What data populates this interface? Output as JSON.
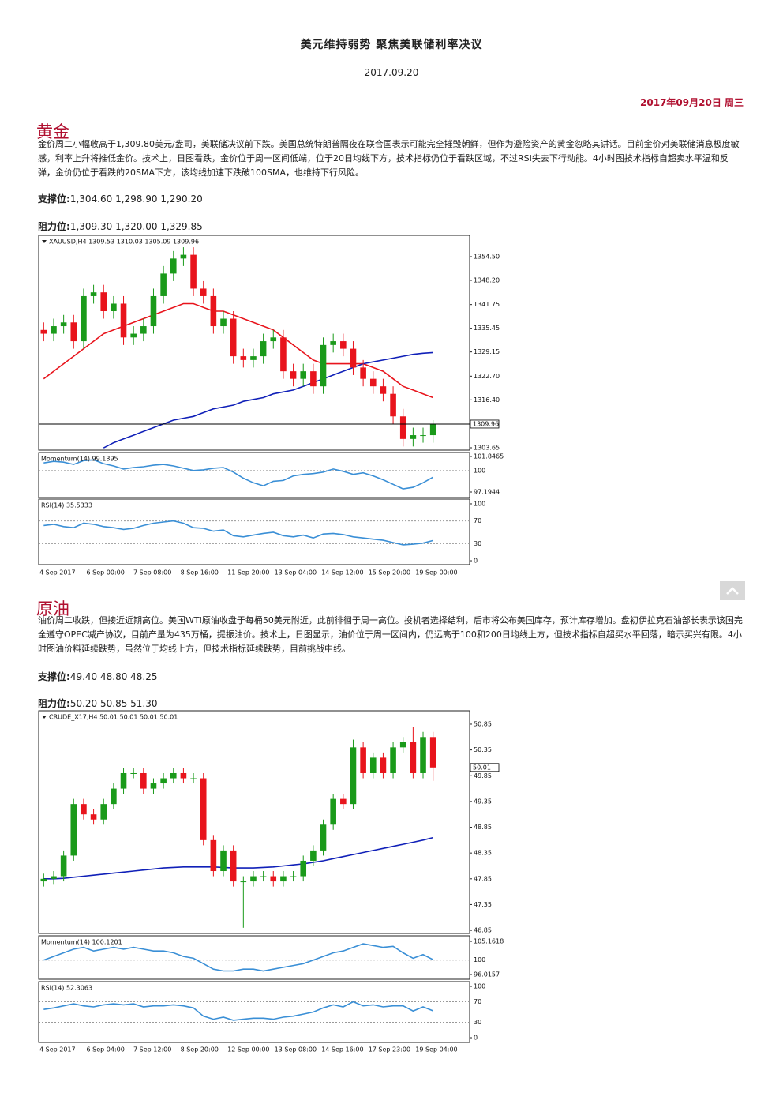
{
  "document": {
    "header": {
      "title": "美元维持弱势 聚焦美联储利率决议",
      "date": "2017.09.20",
      "date_right": "2017年09月20日 周三"
    },
    "sections": [
      {
        "heading": "黄金",
        "body": "金价周二小幅收高于1,309.80美元/盎司，美联储决议前下跌。美国总统特朗普隔夜在联合国表示可能完全摧毁朝鲜，但作为避险资产的黄金忽略其讲话。目前金价对美联储消息极度敏感，利率上升将推低金价。技术上，日图看跌，金价位于周一区间低端，位于20日均线下方，技术指标仍位于看跌区域，不过RSI失去下行动能。4小时图技术指标自超卖水平温和反弹，金价仍位于看跌的20SMA下方，该均线加速下跌破100SMA，也维持下行风险。",
        "support_label": "支撑位:",
        "support": "1,304.60 1,298.90 1,290.20",
        "resistance_label": "阻力位:",
        "resistance": "1,309.30 1,320.00 1,329.85"
      },
      {
        "heading": "原油",
        "body": "油价周二收跌，但接近近期高位。美国WTI原油收盘于每桶50美元附近，此前徘徊于周一高位。投机者选择结利，后市将公布美国库存，预计库存增加。盘初伊拉克石油部长表示该国完全遵守OPEC减产协议，目前产量为435万桶，提振油价。技术上，日图显示，油价位于周一区间内，仍远高于100和200日均线上方，但技术指标自超买水平回落，暗示买兴有限。4小时图油价料延续跌势，虽然位于均线上方，但技术指标延续跌势，目前挑战中线。",
        "support_label": "支撑位:",
        "support": "49.40 48.80 48.25",
        "resistance_label": "阻力位:",
        "resistance": "50.20 50.85 51.30"
      }
    ]
  },
  "chart_data": [
    {
      "type": "candlestick",
      "header": "XAUUSD,H4  1309.53 1310.03 1305.09 1309.96",
      "up_color": "#1a9a1a",
      "down_color": "#e8141c",
      "ylim": [
        1303.02,
        1360.17
      ],
      "yticks": [
        {
          "value": 1354.5,
          "label": "1354.50"
        },
        {
          "value": 1348.2,
          "label": "1348.20"
        },
        {
          "value": 1341.75,
          "label": "1341.75"
        },
        {
          "value": 1335.45,
          "label": "1335.45"
        },
        {
          "value": 1329.15,
          "label": "1329.15"
        },
        {
          "value": 1322.7,
          "label": "1322.70"
        },
        {
          "value": 1316.4,
          "label": "1316.40"
        },
        {
          "value": 1303.65,
          "label": "1303.65"
        }
      ],
      "last_price": 1309.96,
      "last_price_line": true,
      "x_labels": [
        "4 Sep 2017",
        "6 Sep 00:00",
        "7 Sep 08:00",
        "8 Sep 16:00",
        "11 Sep 20:00",
        "13 Sep 04:00",
        "14 Sep 12:00",
        "15 Sep 20:00",
        "19 Sep 00:00"
      ],
      "open": [
        1335,
        1334,
        1336,
        1337,
        1332,
        1344,
        1345,
        1340,
        1342,
        1333,
        1334,
        1336,
        1344,
        1350,
        1354,
        1355,
        1346,
        1344,
        1336,
        1338,
        1328,
        1327,
        1328,
        1332,
        1333,
        1324,
        1322,
        1324,
        1320,
        1331,
        1332,
        1330,
        1325,
        1322,
        1320,
        1318,
        1312,
        1306,
        1307,
        1307
      ],
      "high": [
        1337,
        1338,
        1339,
        1339,
        1346,
        1347,
        1347,
        1344,
        1344,
        1336,
        1338,
        1346,
        1352,
        1356,
        1357,
        1357,
        1348,
        1346,
        1340,
        1340,
        1330,
        1330,
        1334,
        1335,
        1335,
        1326,
        1326,
        1326,
        1333,
        1334,
        1334,
        1332,
        1327,
        1324,
        1322,
        1320,
        1314,
        1309,
        1309,
        1311
      ],
      "low": [
        1332,
        1332,
        1334,
        1330,
        1330,
        1342,
        1338,
        1338,
        1331,
        1331,
        1332,
        1334,
        1342,
        1348,
        1352,
        1344,
        1342,
        1334,
        1334,
        1326,
        1325,
        1325,
        1326,
        1330,
        1322,
        1320,
        1320,
        1318,
        1318,
        1329,
        1328,
        1323,
        1320,
        1318,
        1316,
        1310,
        1304,
        1304,
        1305,
        1305
      ],
      "close": [
        1334,
        1336,
        1337,
        1332,
        1344,
        1345,
        1340,
        1342,
        1333,
        1334,
        1336,
        1344,
        1350,
        1354,
        1355,
        1346,
        1344,
        1336,
        1338,
        1328,
        1327,
        1328,
        1332,
        1333,
        1324,
        1322,
        1324,
        1320,
        1331,
        1332,
        1330,
        1325,
        1322,
        1320,
        1318,
        1312,
        1306,
        1307,
        1307,
        1309.96
      ],
      "lines": [
        {
          "color": "#e8141c",
          "values": [
            1322,
            1324,
            1326,
            1328,
            1330,
            1332,
            1334,
            1335,
            1336,
            1337,
            1338,
            1339,
            1340,
            1341,
            1342,
            1342,
            1341,
            1340,
            1340,
            1339,
            1338,
            1337,
            1336,
            1335,
            1333,
            1331,
            1329,
            1327,
            1326,
            1326,
            1326,
            1326,
            1326,
            1325,
            1324,
            1322,
            1320,
            1319,
            1318,
            1317
          ]
        },
        {
          "color": "#1020b8",
          "values": [
            null,
            null,
            null,
            null,
            null,
            null,
            1303.6,
            1305,
            1306,
            1307,
            1308,
            1309,
            1310,
            1311,
            1311.5,
            1312,
            1313,
            1314,
            1314.5,
            1315,
            1316,
            1316.5,
            1317,
            1318,
            1318.5,
            1319,
            1320,
            1321,
            1322,
            1323,
            1324,
            1325,
            1326,
            1326.5,
            1327,
            1327.5,
            1328,
            1328.5,
            1328.8,
            1329
          ]
        }
      ],
      "momentum": {
        "label": "Momentum(14) 99.1395",
        "color": "#3a8fd6",
        "ylim": [
          96.47,
          102.36
        ],
        "yticks": [
          101.8465,
          100,
          97.1944
        ],
        "values": [
          101.0,
          101.2,
          101.1,
          100.8,
          101.3,
          101.4,
          100.9,
          100.6,
          100.2,
          100.4,
          100.5,
          100.7,
          100.8,
          100.6,
          100.3,
          100.0,
          100.1,
          100.3,
          100.4,
          99.8,
          99.0,
          98.4,
          98.0,
          98.6,
          98.7,
          99.3,
          99.5,
          99.6,
          99.8,
          100.2,
          99.9,
          99.5,
          99.7,
          99.3,
          98.8,
          98.2,
          97.6,
          97.8,
          98.4,
          99.1395
        ]
      },
      "rsi": {
        "label": "RSI(14) 35.5333",
        "color": "#3a8fd6",
        "ylim": [
          -6.9,
          108.3
        ],
        "yticks": [
          100,
          70,
          30,
          0
        ],
        "values": [
          62,
          64,
          60,
          58,
          66,
          64,
          60,
          58,
          55,
          57,
          62,
          66,
          68,
          70,
          66,
          58,
          57,
          52,
          54,
          44,
          42,
          45,
          48,
          50,
          44,
          42,
          45,
          40,
          47,
          48,
          46,
          42,
          40,
          38,
          36,
          32,
          28,
          29,
          31,
          35.5333
        ]
      }
    },
    {
      "type": "candlestick",
      "header": "CRUDE_X17,H4  50.01 50.01 50.01 50.01",
      "up_color": "#1a9a1a",
      "down_color": "#e8141c",
      "ylim": [
        46.79,
        51.11
      ],
      "yticks": [
        {
          "value": 50.85,
          "label": "50.85"
        },
        {
          "value": 50.35,
          "label": "50.35"
        },
        {
          "value": 49.85,
          "label": "49.85"
        },
        {
          "value": 49.35,
          "label": "49.35"
        },
        {
          "value": 48.85,
          "label": "48.85"
        },
        {
          "value": 48.35,
          "label": "48.35"
        },
        {
          "value": 47.85,
          "label": "47.85"
        },
        {
          "value": 47.35,
          "label": "47.35"
        },
        {
          "value": 46.85,
          "label": "46.85"
        }
      ],
      "last_price": 50.01,
      "last_price_line": false,
      "x_labels": [
        "4 Sep 2017",
        "6 Sep 04:00",
        "7 Sep 12:00",
        "8 Sep 20:00",
        "12 Sep 00:00",
        "13 Sep 08:00",
        "14 Sep 16:00",
        "17 Sep 23:00",
        "19 Sep 04:00"
      ],
      "open": [
        47.8,
        47.85,
        47.9,
        48.3,
        49.3,
        49.1,
        49.0,
        49.3,
        49.6,
        49.9,
        49.9,
        49.6,
        49.7,
        49.8,
        49.9,
        49.8,
        49.8,
        48.6,
        48.0,
        48.4,
        47.8,
        47.8,
        47.9,
        47.9,
        47.8,
        47.9,
        47.9,
        48.2,
        48.4,
        48.9,
        49.4,
        49.3,
        50.4,
        49.9,
        50.2,
        49.9,
        50.4,
        50.5,
        49.9,
        50.6
      ],
      "high": [
        47.95,
        48.0,
        48.4,
        49.4,
        49.4,
        49.2,
        49.4,
        49.7,
        50.0,
        50.0,
        50.0,
        49.8,
        49.9,
        50.0,
        50.0,
        49.9,
        49.9,
        48.7,
        48.5,
        48.5,
        47.9,
        48.0,
        48.0,
        48.0,
        48.0,
        48.0,
        48.3,
        48.5,
        49.0,
        49.5,
        49.5,
        50.55,
        50.5,
        50.3,
        50.3,
        50.5,
        50.6,
        50.8,
        50.7,
        50.7
      ],
      "low": [
        47.7,
        47.75,
        47.8,
        48.2,
        49.0,
        48.9,
        48.9,
        49.2,
        49.5,
        49.8,
        49.5,
        49.5,
        49.6,
        49.7,
        49.7,
        49.7,
        48.5,
        47.9,
        47.9,
        47.7,
        46.9,
        47.7,
        47.8,
        47.7,
        47.7,
        47.8,
        47.8,
        48.1,
        48.3,
        48.8,
        49.2,
        49.2,
        49.8,
        49.8,
        49.8,
        49.8,
        50.3,
        49.8,
        49.8,
        49.75
      ],
      "close": [
        47.85,
        47.9,
        48.3,
        49.3,
        49.1,
        49.0,
        49.3,
        49.6,
        49.9,
        49.9,
        49.6,
        49.7,
        49.8,
        49.9,
        49.8,
        49.8,
        48.6,
        48.0,
        48.4,
        47.8,
        47.8,
        47.9,
        47.9,
        47.8,
        47.9,
        47.9,
        48.2,
        48.4,
        48.9,
        49.4,
        49.3,
        50.4,
        49.9,
        50.2,
        49.9,
        50.4,
        50.5,
        49.9,
        50.6,
        50.01
      ],
      "lines": [
        {
          "color": "#1020b8",
          "values": [
            47.85,
            47.85,
            47.86,
            47.88,
            47.9,
            47.92,
            47.94,
            47.96,
            47.98,
            48.0,
            48.02,
            48.04,
            48.06,
            48.07,
            48.08,
            48.08,
            48.08,
            48.08,
            48.07,
            48.06,
            48.06,
            48.06,
            48.07,
            48.08,
            48.1,
            48.12,
            48.14,
            48.17,
            48.2,
            48.24,
            48.28,
            48.32,
            48.36,
            48.4,
            48.44,
            48.48,
            48.52,
            48.56,
            48.6,
            48.65
          ]
        }
      ],
      "momentum": {
        "label": "Momentum(14) 100.1201",
        "color": "#3a8fd6",
        "ylim": [
          94.71,
          106.69
        ],
        "yticks": [
          105.1618,
          100,
          96.0157
        ],
        "values": [
          100,
          101,
          102,
          103,
          103.5,
          102.5,
          103,
          103.5,
          103,
          103.5,
          103,
          102.5,
          102.5,
          102,
          101,
          100.5,
          99,
          97.5,
          97,
          97,
          97.5,
          97.5,
          97,
          97.5,
          98,
          98.5,
          99,
          100,
          101,
          102,
          102.5,
          103.5,
          104.5,
          104,
          103.5,
          103.8,
          102,
          100.5,
          101.5,
          100.1201
        ]
      },
      "rsi": {
        "label": "RSI(14) 52.3063",
        "color": "#3a8fd6",
        "ylim": [
          -9.2,
          109.2
        ],
        "yticks": [
          100,
          70,
          30,
          0
        ],
        "values": [
          55,
          58,
          62,
          66,
          62,
          60,
          64,
          66,
          64,
          66,
          60,
          62,
          62,
          64,
          62,
          58,
          42,
          36,
          40,
          34,
          36,
          38,
          38,
          36,
          40,
          42,
          46,
          50,
          58,
          64,
          60,
          70,
          62,
          64,
          60,
          62,
          62,
          52,
          60,
          52.3063
        ]
      }
    }
  ]
}
